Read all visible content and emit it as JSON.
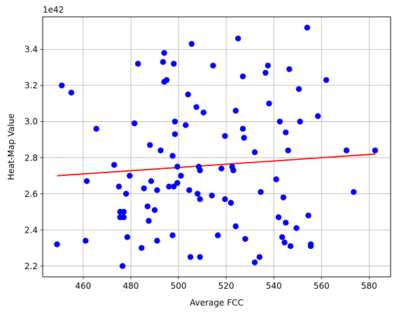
{
  "chart_data": {
    "type": "scatter",
    "xlabel": "Average FCC",
    "ylabel": "Heat-Map Value",
    "y_offset_text": "1e42",
    "xlim": [
      443,
      589
    ],
    "ylim": [
      2.14,
      3.58
    ],
    "xticks": [
      460,
      480,
      500,
      520,
      540,
      560,
      580
    ],
    "xtick_labels": [
      "460",
      "480",
      "500",
      "520",
      "540",
      "560",
      "580"
    ],
    "yticks": [
      2.2,
      2.4,
      2.6,
      2.8,
      3.0,
      3.2,
      3.4
    ],
    "ytick_labels": [
      "2.2",
      "2.4",
      "2.6",
      "2.8",
      "3.0",
      "3.2",
      "3.4"
    ],
    "grid": true,
    "point_color": "#0000ff",
    "trend_color": "#ff0000",
    "points": [
      [
        449,
        2.32
      ],
      [
        451,
        3.2
      ],
      [
        455,
        3.16
      ],
      [
        461,
        2.34
      ],
      [
        461.5,
        2.67
      ],
      [
        465.5,
        2.96
      ],
      [
        473,
        2.76
      ],
      [
        475,
        2.64
      ],
      [
        475.5,
        2.5
      ],
      [
        475.5,
        2.47
      ],
      [
        476.5,
        2.2
      ],
      [
        477,
        2.5
      ],
      [
        477,
        2.47
      ],
      [
        478,
        2.6
      ],
      [
        478.5,
        2.36
      ],
      [
        479.5,
        2.7
      ],
      [
        481.5,
        2.99
      ],
      [
        483,
        3.32
      ],
      [
        484.5,
        2.3
      ],
      [
        485.5,
        2.63
      ],
      [
        487,
        2.53
      ],
      [
        487.5,
        2.45
      ],
      [
        488,
        2.87
      ],
      [
        488.5,
        2.67
      ],
      [
        490,
        2.51
      ],
      [
        491,
        2.62
      ],
      [
        491,
        2.34
      ],
      [
        492.5,
        2.84
      ],
      [
        493.5,
        3.33
      ],
      [
        494,
        3.22
      ],
      [
        494,
        3.38
      ],
      [
        495,
        3.23
      ],
      [
        496,
        2.64
      ],
      [
        497.5,
        2.81
      ],
      [
        497.5,
        2.37
      ],
      [
        498,
        3.32
      ],
      [
        498,
        2.64
      ],
      [
        498.5,
        3.0
      ],
      [
        498.5,
        2.93
      ],
      [
        499.5,
        2.66
      ],
      [
        499.5,
        2.75
      ],
      [
        501,
        2.7
      ],
      [
        503,
        2.98
      ],
      [
        504,
        3.15
      ],
      [
        504.5,
        2.62
      ],
      [
        505,
        2.25
      ],
      [
        505.5,
        3.43
      ],
      [
        507.5,
        3.08
      ],
      [
        508,
        2.6
      ],
      [
        508.5,
        2.75
      ],
      [
        509,
        2.57
      ],
      [
        509,
        2.25
      ],
      [
        509,
        2.73
      ],
      [
        510.5,
        3.05
      ],
      [
        514,
        2.59
      ],
      [
        514.5,
        3.31
      ],
      [
        516.5,
        2.37
      ],
      [
        518,
        2.74
      ],
      [
        519.5,
        2.57
      ],
      [
        519.5,
        2.92
      ],
      [
        522,
        2.55
      ],
      [
        522.5,
        2.75
      ],
      [
        523,
        2.73
      ],
      [
        524,
        3.06
      ],
      [
        524,
        2.42
      ],
      [
        525,
        3.46
      ],
      [
        527,
        3.25
      ],
      [
        527,
        2.96
      ],
      [
        527.5,
        2.91
      ],
      [
        528,
        2.35
      ],
      [
        532,
        2.83
      ],
      [
        532,
        2.22
      ],
      [
        534,
        2.25
      ],
      [
        534.5,
        2.61
      ],
      [
        536.5,
        3.27
      ],
      [
        537.5,
        3.31
      ],
      [
        538,
        3.1
      ],
      [
        541,
        2.68
      ],
      [
        542,
        2.47
      ],
      [
        542.5,
        3.0
      ],
      [
        543.5,
        2.36
      ],
      [
        544,
        2.58
      ],
      [
        544.5,
        2.33
      ],
      [
        545,
        2.94
      ],
      [
        545,
        2.44
      ],
      [
        546,
        2.84
      ],
      [
        546.5,
        3.29
      ],
      [
        547,
        2.31
      ],
      [
        549.5,
        2.41
      ],
      [
        550.5,
        3.18
      ],
      [
        551,
        3.0
      ],
      [
        554,
        3.52
      ],
      [
        554.5,
        2.48
      ],
      [
        555.5,
        2.32
      ],
      [
        555.5,
        2.31
      ],
      [
        558.5,
        3.03
      ],
      [
        562,
        3.23
      ],
      [
        570.5,
        2.84
      ],
      [
        573.5,
        2.61
      ],
      [
        582.5,
        2.84
      ]
    ],
    "trend_line": {
      "x": [
        449,
        582.5
      ],
      "y": [
        2.7,
        2.82
      ]
    }
  }
}
